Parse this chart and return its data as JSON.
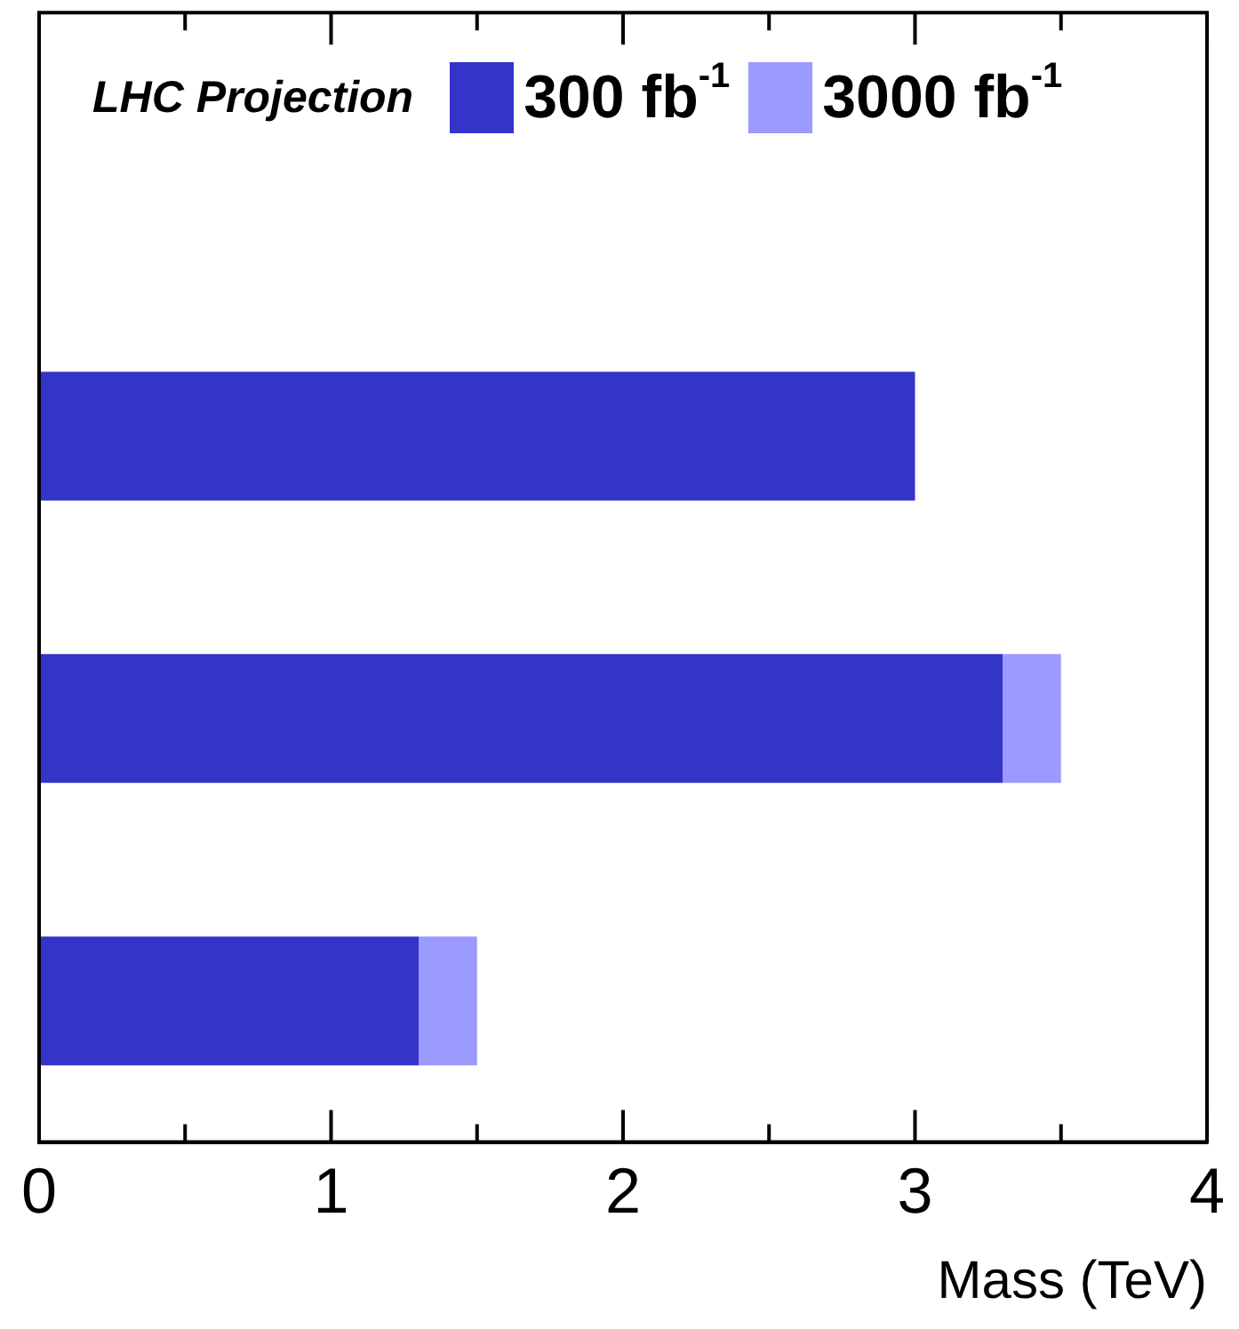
{
  "chart_data": {
    "type": "bar",
    "orientation": "horizontal",
    "stacked": true,
    "categories": [
      null,
      null,
      null
    ],
    "series": [
      {
        "name": "300 fb$^{-1}$",
        "color": "#3434c9",
        "values": [
          3.0,
          3.3,
          1.3
        ]
      },
      {
        "name": "3000 fb$^{-1}$",
        "color": "#9a9aff",
        "values": [
          0,
          0.2,
          0.2
        ]
      }
    ],
    "xlim": [
      0,
      4
    ],
    "xticks": [
      0,
      {
        "value": 0.5,
        "label": null
      },
      1,
      {
        "value": 1.5,
        "label": null
      },
      2,
      {
        "value": 2.5,
        "label": null
      },
      3,
      {
        "value": 3.5,
        "label": null
      },
      4
    ],
    "xlabel": "Mass (TeV)",
    "legend_title": "LHC Projection",
    "legend": "top",
    "tick_labels": "x",
    "grid": false
  }
}
